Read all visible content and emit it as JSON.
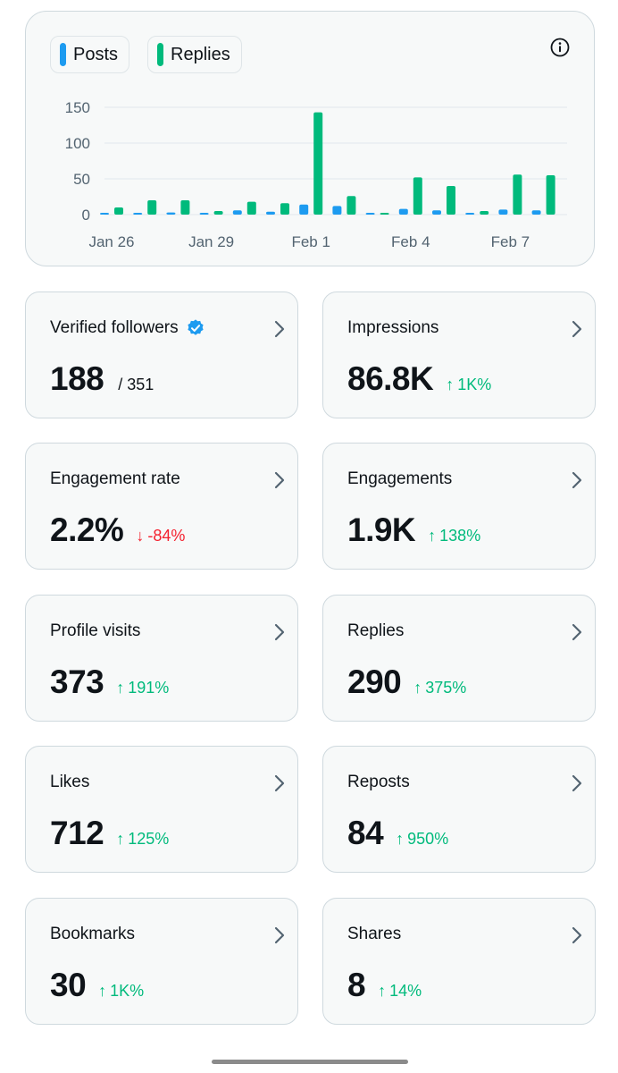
{
  "chart": {
    "legend_posts": "Posts",
    "legend_replies": "Replies",
    "posts_color": "#1d9bf0",
    "replies_color": "#00ba7c",
    "info_icon": "info-icon"
  },
  "chart_data": {
    "type": "bar",
    "categories": [
      "Jan 26",
      "Jan 27",
      "Jan 28",
      "Jan 29",
      "Jan 30",
      "Jan 31",
      "Feb 1",
      "Feb 2",
      "Feb 3",
      "Feb 4",
      "Feb 5",
      "Feb 6",
      "Feb 7",
      "Feb 8"
    ],
    "x_tick_labels": [
      {
        "label": "Jan 26",
        "index": 0
      },
      {
        "label": "Jan 29",
        "index": 3
      },
      {
        "label": "Feb 1",
        "index": 6
      },
      {
        "label": "Feb 4",
        "index": 9
      },
      {
        "label": "Feb 7",
        "index": 12
      }
    ],
    "series": [
      {
        "name": "Posts",
        "values": [
          2,
          2,
          3,
          2,
          6,
          4,
          14,
          12,
          1,
          8,
          6,
          2,
          7,
          6
        ]
      },
      {
        "name": "Replies",
        "values": [
          10,
          20,
          20,
          5,
          18,
          16,
          143,
          26,
          1,
          52,
          40,
          5,
          56,
          55
        ]
      }
    ],
    "yticks": [
      0,
      50,
      100,
      150
    ],
    "ylim": [
      0,
      150
    ],
    "grid": true,
    "title": "",
    "xlabel": "",
    "ylabel": ""
  },
  "cards": [
    {
      "label": "Verified followers",
      "value": "188",
      "total": "/ 351",
      "verified_icon": "verified-badge-icon"
    },
    {
      "label": "Impressions",
      "value": "86.8K",
      "delta": "1K%",
      "direction": "up"
    },
    {
      "label": "Engagement rate",
      "value": "2.2%",
      "delta": "-84%",
      "direction": "down"
    },
    {
      "label": "Engagements",
      "value": "1.9K",
      "delta": "138%",
      "direction": "up"
    },
    {
      "label": "Profile visits",
      "value": "373",
      "delta": "191%",
      "direction": "up"
    },
    {
      "label": "Replies",
      "value": "290",
      "delta": "375%",
      "direction": "up"
    },
    {
      "label": "Likes",
      "value": "712",
      "delta": "125%",
      "direction": "up"
    },
    {
      "label": "Reposts",
      "value": "84",
      "delta": "950%",
      "direction": "up"
    },
    {
      "label": "Bookmarks",
      "value": "30",
      "delta": "1K%",
      "direction": "up"
    },
    {
      "label": "Shares",
      "value": "8",
      "delta": "14%",
      "direction": "up"
    }
  ]
}
